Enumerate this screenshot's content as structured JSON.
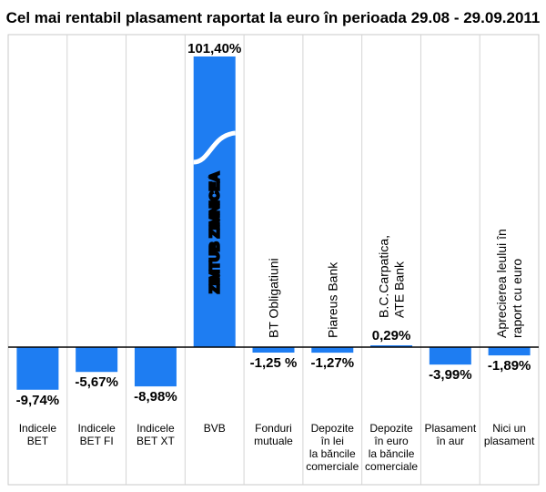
{
  "chart_data": {
    "type": "bar",
    "title": "Cel mai rentabil plasament raportat la euro în perioada 29.08 - 29.09.2011",
    "categories": [
      [
        "Indicele",
        "BET"
      ],
      [
        "Indicele",
        "BET FI"
      ],
      [
        "Indicele",
        "BET XT"
      ],
      [
        "BVB"
      ],
      [
        "Fonduri",
        "mutuale"
      ],
      [
        "Depozite",
        "în lei",
        "la băncile",
        "comerciale"
      ],
      [
        "Depozite",
        "în euro",
        "la băncile",
        "comerciale"
      ],
      [
        "Plasament",
        "în aur"
      ],
      [
        "Nici un",
        "plasament"
      ]
    ],
    "values": [
      -9.74,
      -5.67,
      -8.98,
      101.4,
      -1.25,
      -1.27,
      0.29,
      -3.99,
      -1.89
    ],
    "value_labels": [
      "-9,74%",
      "-5,67%",
      "-8,98%",
      "101,40%",
      "-1,25 %",
      "-1,27%",
      "0,29%",
      "-3,99%",
      "-1,89%"
    ],
    "bar_names": [
      [],
      [],
      [],
      [
        "ZIMTUB ZIMNICEA"
      ],
      [
        "BT Obligatiuni"
      ],
      [
        "Piareus Bank"
      ],
      [
        "B.C.Carpatica,",
        "ATE Bank"
      ],
      [],
      [
        "Aprecierea leului în",
        "raport cu euro"
      ]
    ],
    "broken_axis_bar": 3,
    "bar_color": "#1e7df2",
    "grid": false
  }
}
